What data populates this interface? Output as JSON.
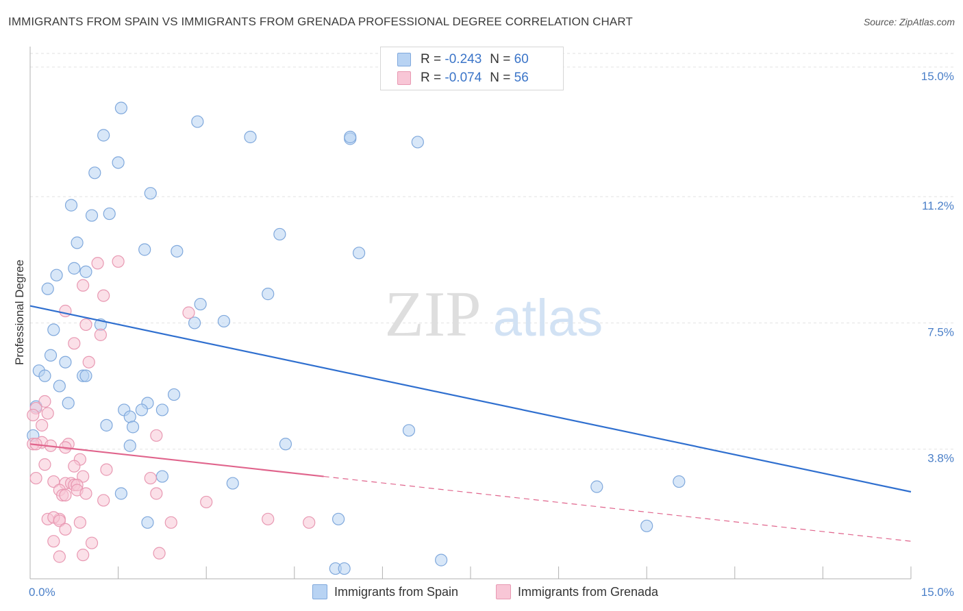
{
  "title": "IMMIGRANTS FROM SPAIN VS IMMIGRANTS FROM GRENADA PROFESSIONAL DEGREE CORRELATION CHART",
  "source": "Source: ZipAtlas.com",
  "watermark": {
    "part1": "ZIP",
    "part2": "atlas"
  },
  "legend": {
    "rows": [
      {
        "r_label": "R =",
        "r_value": "-0.243",
        "n_label": "N =",
        "n_value": "60"
      },
      {
        "r_label": "R =",
        "r_value": "-0.074",
        "n_label": "N =",
        "n_value": "56"
      }
    ]
  },
  "colors": {
    "spain_fill": "#b8d3f3",
    "spain_stroke": "#7fa8dc",
    "spain_line": "#2f6fcf",
    "grenada_fill": "#f8c6d6",
    "grenada_stroke": "#e898b2",
    "grenada_line": "#e0648c",
    "tick_color": "#4a7fc8",
    "grid": "#e2e2e2"
  },
  "chart_data": {
    "type": "scatter",
    "title": "IMMIGRANTS FROM SPAIN VS IMMIGRANTS FROM GRENADA PROFESSIONAL DEGREE CORRELATION CHART",
    "xlabel": "",
    "ylabel": "Professional Degree",
    "xlim": [
      0,
      15
    ],
    "ylim": [
      0,
      15.6
    ],
    "x_tick_labels": [
      "0.0%",
      "15.0%"
    ],
    "y_ticks": [
      {
        "value": 3.8,
        "label": "3.8%"
      },
      {
        "value": 7.5,
        "label": "7.5%"
      },
      {
        "value": 11.2,
        "label": "11.2%"
      },
      {
        "value": 15.0,
        "label": "15.0%"
      }
    ],
    "legend_position": "bottom-center",
    "series": [
      {
        "name": "Immigrants from Spain",
        "r": -0.243,
        "n": 60,
        "trend": {
          "x": [
            0,
            15
          ],
          "y": [
            8.0,
            2.55
          ]
        },
        "points": [
          [
            1.55,
            13.8
          ],
          [
            1.25,
            13.0
          ],
          [
            2.85,
            13.4
          ],
          [
            3.75,
            12.95
          ],
          [
            5.45,
            12.9
          ],
          [
            5.45,
            12.95
          ],
          [
            6.6,
            12.8
          ],
          [
            1.5,
            12.2
          ],
          [
            1.1,
            11.9
          ],
          [
            2.05,
            11.3
          ],
          [
            0.7,
            10.95
          ],
          [
            1.05,
            10.65
          ],
          [
            1.35,
            10.7
          ],
          [
            4.25,
            10.1
          ],
          [
            0.8,
            9.85
          ],
          [
            1.95,
            9.65
          ],
          [
            2.5,
            9.6
          ],
          [
            5.6,
            9.55
          ],
          [
            0.75,
            9.1
          ],
          [
            0.95,
            9.0
          ],
          [
            0.45,
            8.9
          ],
          [
            0.3,
            8.5
          ],
          [
            4.05,
            8.35
          ],
          [
            2.9,
            8.05
          ],
          [
            3.3,
            7.55
          ],
          [
            1.2,
            7.45
          ],
          [
            2.8,
            7.5
          ],
          [
            0.4,
            7.3
          ],
          [
            0.35,
            6.55
          ],
          [
            0.6,
            6.35
          ],
          [
            0.15,
            6.1
          ],
          [
            0.25,
            5.95
          ],
          [
            0.9,
            5.95
          ],
          [
            0.95,
            5.95
          ],
          [
            0.5,
            5.65
          ],
          [
            2.45,
            5.4
          ],
          [
            0.65,
            5.15
          ],
          [
            2.0,
            5.15
          ],
          [
            1.6,
            4.95
          ],
          [
            1.9,
            4.95
          ],
          [
            2.25,
            4.95
          ],
          [
            0.1,
            5.05
          ],
          [
            1.7,
            4.75
          ],
          [
            1.3,
            4.5
          ],
          [
            1.75,
            4.45
          ],
          [
            6.45,
            4.35
          ],
          [
            1.7,
            3.9
          ],
          [
            4.35,
            3.95
          ],
          [
            0.05,
            4.2
          ],
          [
            2.25,
            3.0
          ],
          [
            3.45,
            2.8
          ],
          [
            9.65,
            2.7
          ],
          [
            11.05,
            2.85
          ],
          [
            1.55,
            2.5
          ],
          [
            2.0,
            1.65
          ],
          [
            5.25,
            1.75
          ],
          [
            10.5,
            1.55
          ],
          [
            5.2,
            0.3
          ],
          [
            5.35,
            0.3
          ],
          [
            7.0,
            0.55
          ]
        ]
      },
      {
        "name": "Immigrants from Grenada",
        "r": -0.074,
        "n": 56,
        "trend": {
          "x": [
            0,
            5
          ],
          "y": [
            3.95,
            3.0
          ]
        },
        "trend_extension": {
          "x": [
            5,
            15
          ],
          "y": [
            3.0,
            1.1
          ]
        },
        "points": [
          [
            1.5,
            9.3
          ],
          [
            1.15,
            9.25
          ],
          [
            0.9,
            8.6
          ],
          [
            1.25,
            8.3
          ],
          [
            0.6,
            7.85
          ],
          [
            2.7,
            7.8
          ],
          [
            0.95,
            7.45
          ],
          [
            1.2,
            7.15
          ],
          [
            0.75,
            6.9
          ],
          [
            1.0,
            6.35
          ],
          [
            0.25,
            5.2
          ],
          [
            0.1,
            5.0
          ],
          [
            0.3,
            4.85
          ],
          [
            0.05,
            4.8
          ],
          [
            0.2,
            4.5
          ],
          [
            2.15,
            4.2
          ],
          [
            0.2,
            4.0
          ],
          [
            0.05,
            3.95
          ],
          [
            0.65,
            3.95
          ],
          [
            0.35,
            3.9
          ],
          [
            0.6,
            3.85
          ],
          [
            0.85,
            3.5
          ],
          [
            0.25,
            3.35
          ],
          [
            0.75,
            3.3
          ],
          [
            1.3,
            3.2
          ],
          [
            0.9,
            3.0
          ],
          [
            0.1,
            2.95
          ],
          [
            2.05,
            2.95
          ],
          [
            0.4,
            2.85
          ],
          [
            0.6,
            2.8
          ],
          [
            0.7,
            2.8
          ],
          [
            0.75,
            2.75
          ],
          [
            0.8,
            2.75
          ],
          [
            0.5,
            2.6
          ],
          [
            0.8,
            2.6
          ],
          [
            0.55,
            2.45
          ],
          [
            0.6,
            2.45
          ],
          [
            2.15,
            2.5
          ],
          [
            1.25,
            2.3
          ],
          [
            3.0,
            2.25
          ],
          [
            0.3,
            1.75
          ],
          [
            0.5,
            1.75
          ],
          [
            0.4,
            1.8
          ],
          [
            0.5,
            1.7
          ],
          [
            0.85,
            1.65
          ],
          [
            2.4,
            1.65
          ],
          [
            4.05,
            1.75
          ],
          [
            4.75,
            1.65
          ],
          [
            0.6,
            1.45
          ],
          [
            0.4,
            1.1
          ],
          [
            1.05,
            1.05
          ],
          [
            0.5,
            0.65
          ],
          [
            0.9,
            0.7
          ],
          [
            2.2,
            0.75
          ],
          [
            0.1,
            3.95
          ],
          [
            0.95,
            2.5
          ]
        ]
      }
    ]
  }
}
